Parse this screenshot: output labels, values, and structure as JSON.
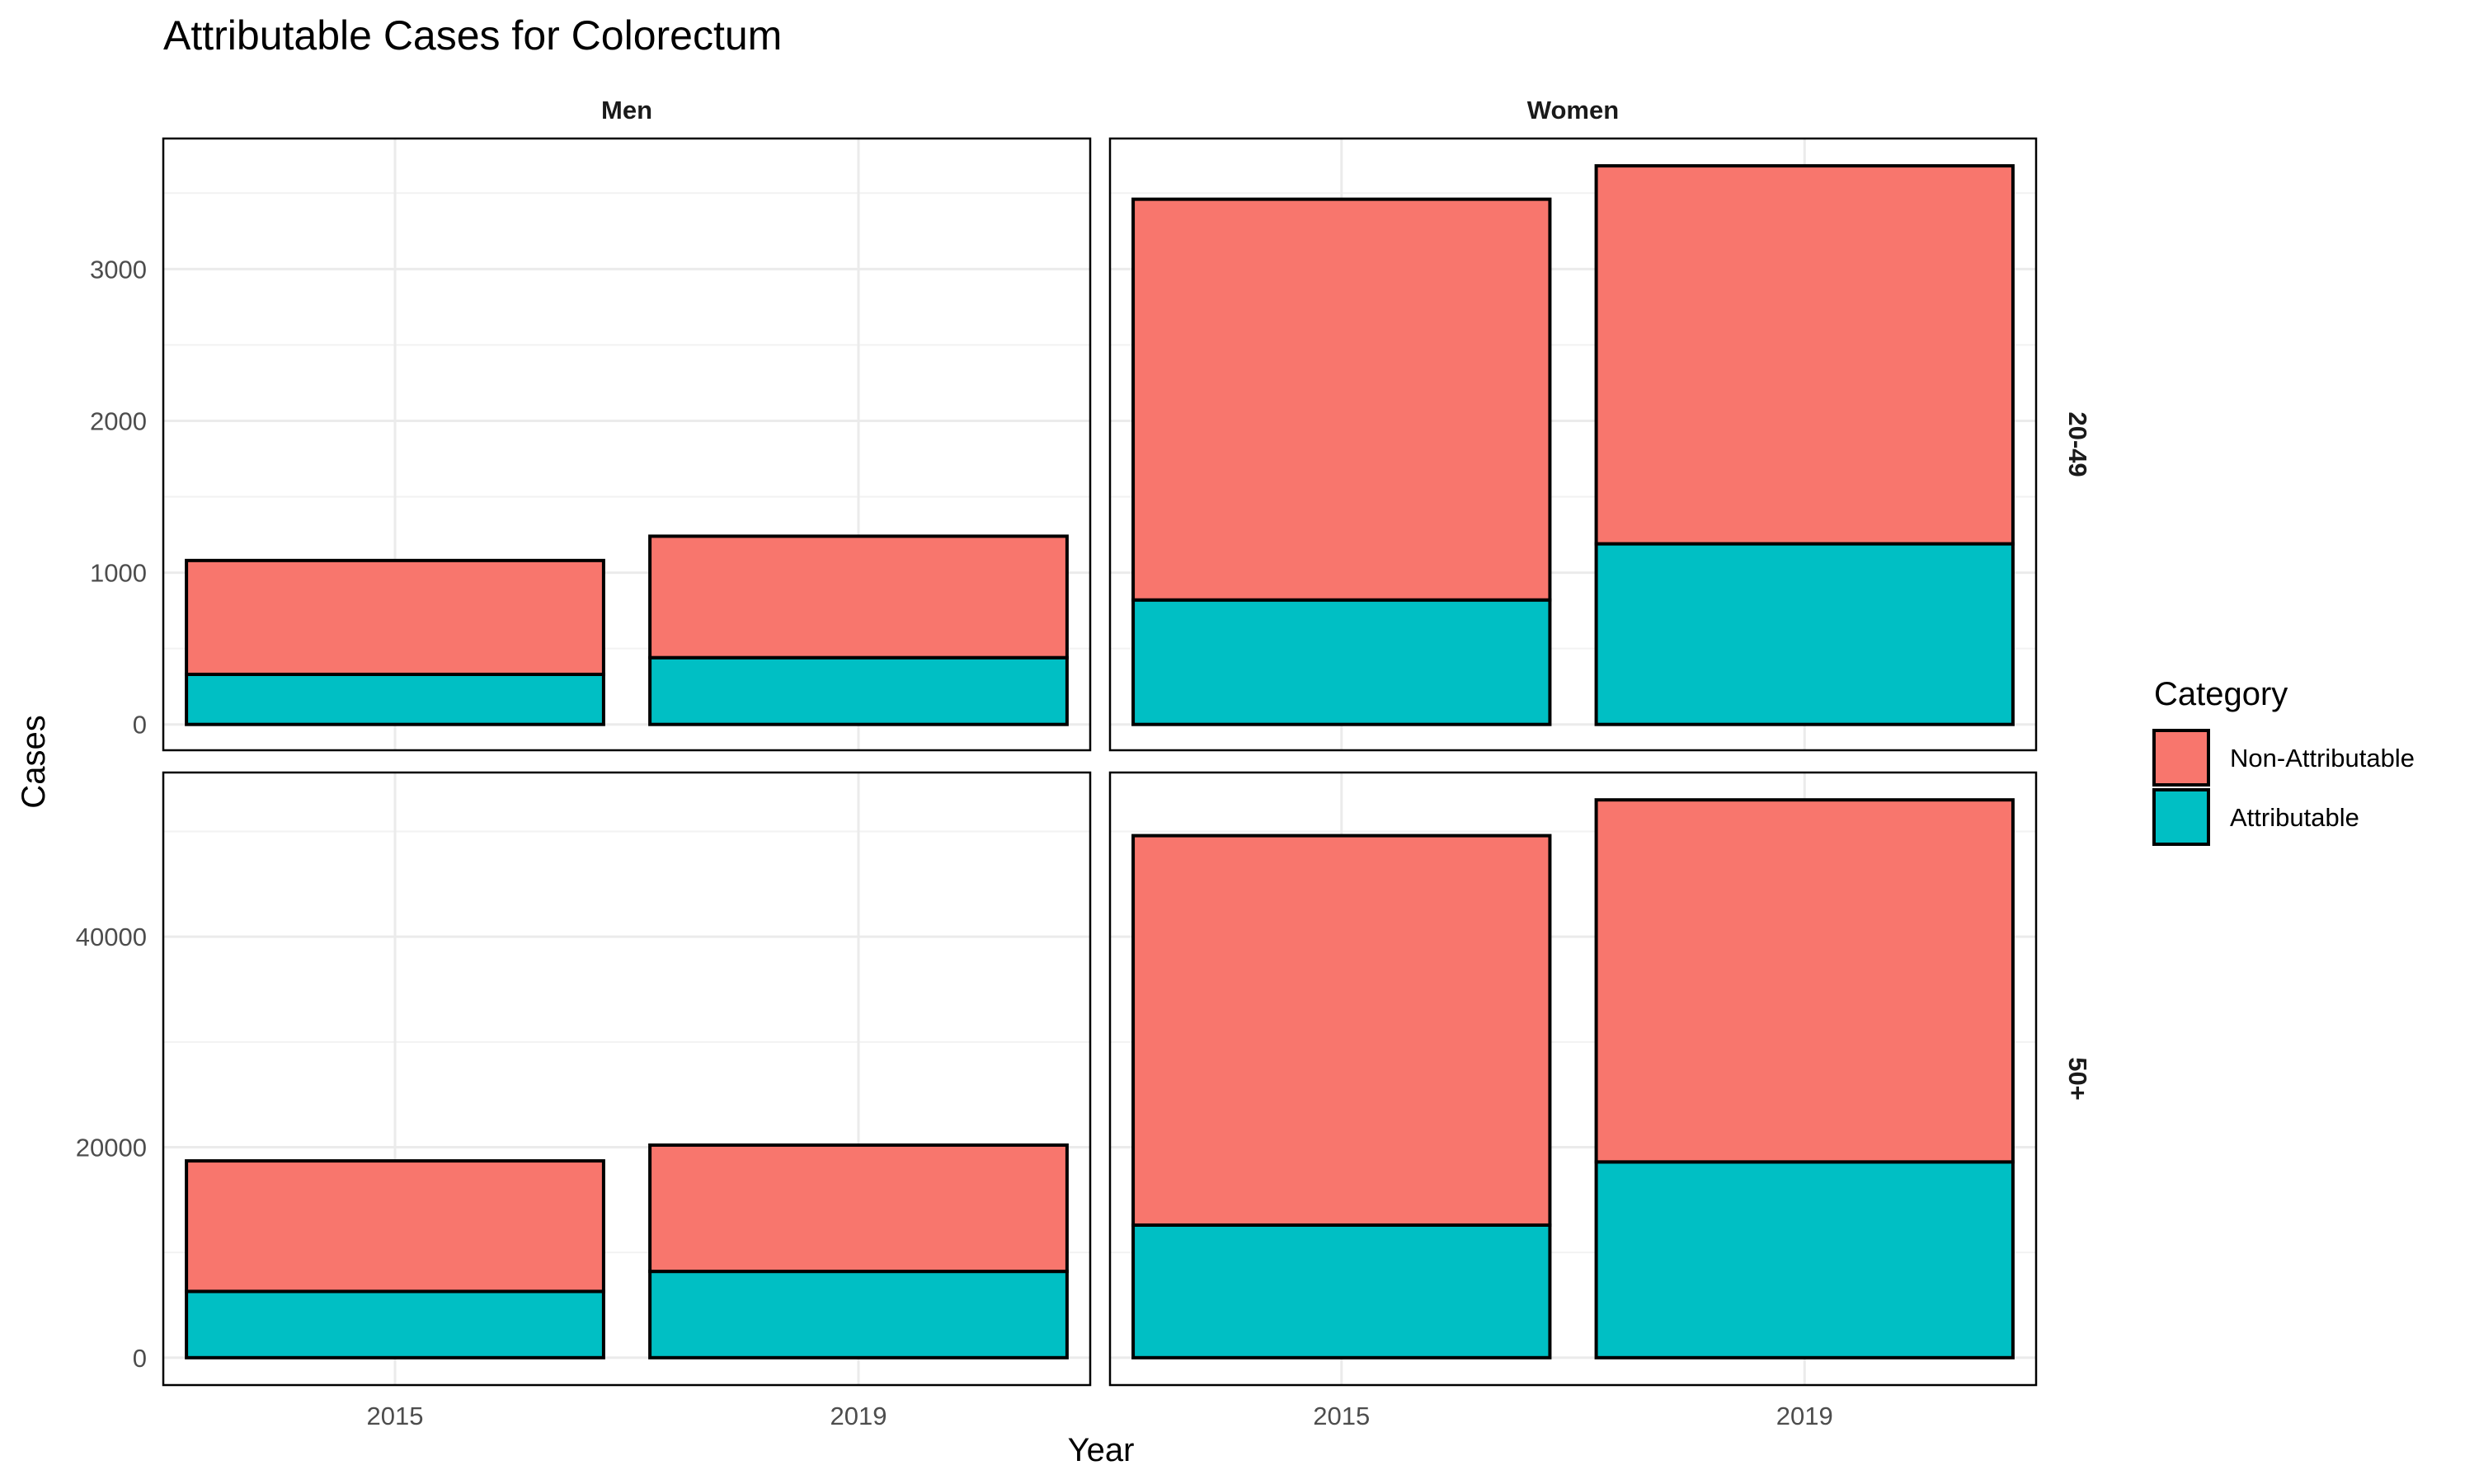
{
  "chart_data": {
    "type": "bar",
    "stacked": true,
    "title": "Attributable Cases for Colorectum",
    "xlabel": "Year",
    "ylabel": "Cases",
    "categories": [
      "2015",
      "2019"
    ],
    "facet_columns": [
      "Men",
      "Women"
    ],
    "facet_rows": [
      "20-49",
      "50+"
    ],
    "scales": "free_y per row",
    "grid": true,
    "legend": {
      "title": "Category",
      "position": "right",
      "entries": [
        {
          "name": "Non-Attributable",
          "color": "#F8766D"
        },
        {
          "name": "Attributable",
          "color": "#00BFC4"
        }
      ]
    },
    "rows": [
      {
        "label": "20-49",
        "ylim": [
          -170,
          3860
        ],
        "yticks": [
          0,
          1000,
          2000,
          3000
        ],
        "panels": [
          {
            "column": "Men",
            "series": [
              {
                "name": "Attributable",
                "values": [
                  330,
                  440
                ]
              },
              {
                "name": "Non-Attributable",
                "values": [
                  750,
                  800
                ]
              }
            ]
          },
          {
            "column": "Women",
            "series": [
              {
                "name": "Attributable",
                "values": [
                  820,
                  1190
                ]
              },
              {
                "name": "Non-Attributable",
                "values": [
                  2640,
                  2490
                ]
              }
            ]
          }
        ]
      },
      {
        "label": "50+",
        "ylim": [
          -2600,
          55600
        ],
        "yticks": [
          0,
          20000,
          40000
        ],
        "panels": [
          {
            "column": "Men",
            "series": [
              {
                "name": "Attributable",
                "values": [
                  6300,
                  8200
                ]
              },
              {
                "name": "Non-Attributable",
                "values": [
                  12400,
                  12000
                ]
              }
            ]
          },
          {
            "column": "Women",
            "series": [
              {
                "name": "Attributable",
                "values": [
                  12600,
                  18600
                ]
              },
              {
                "name": "Non-Attributable",
                "values": [
                  37000,
                  34400
                ]
              }
            ]
          }
        ]
      }
    ]
  }
}
